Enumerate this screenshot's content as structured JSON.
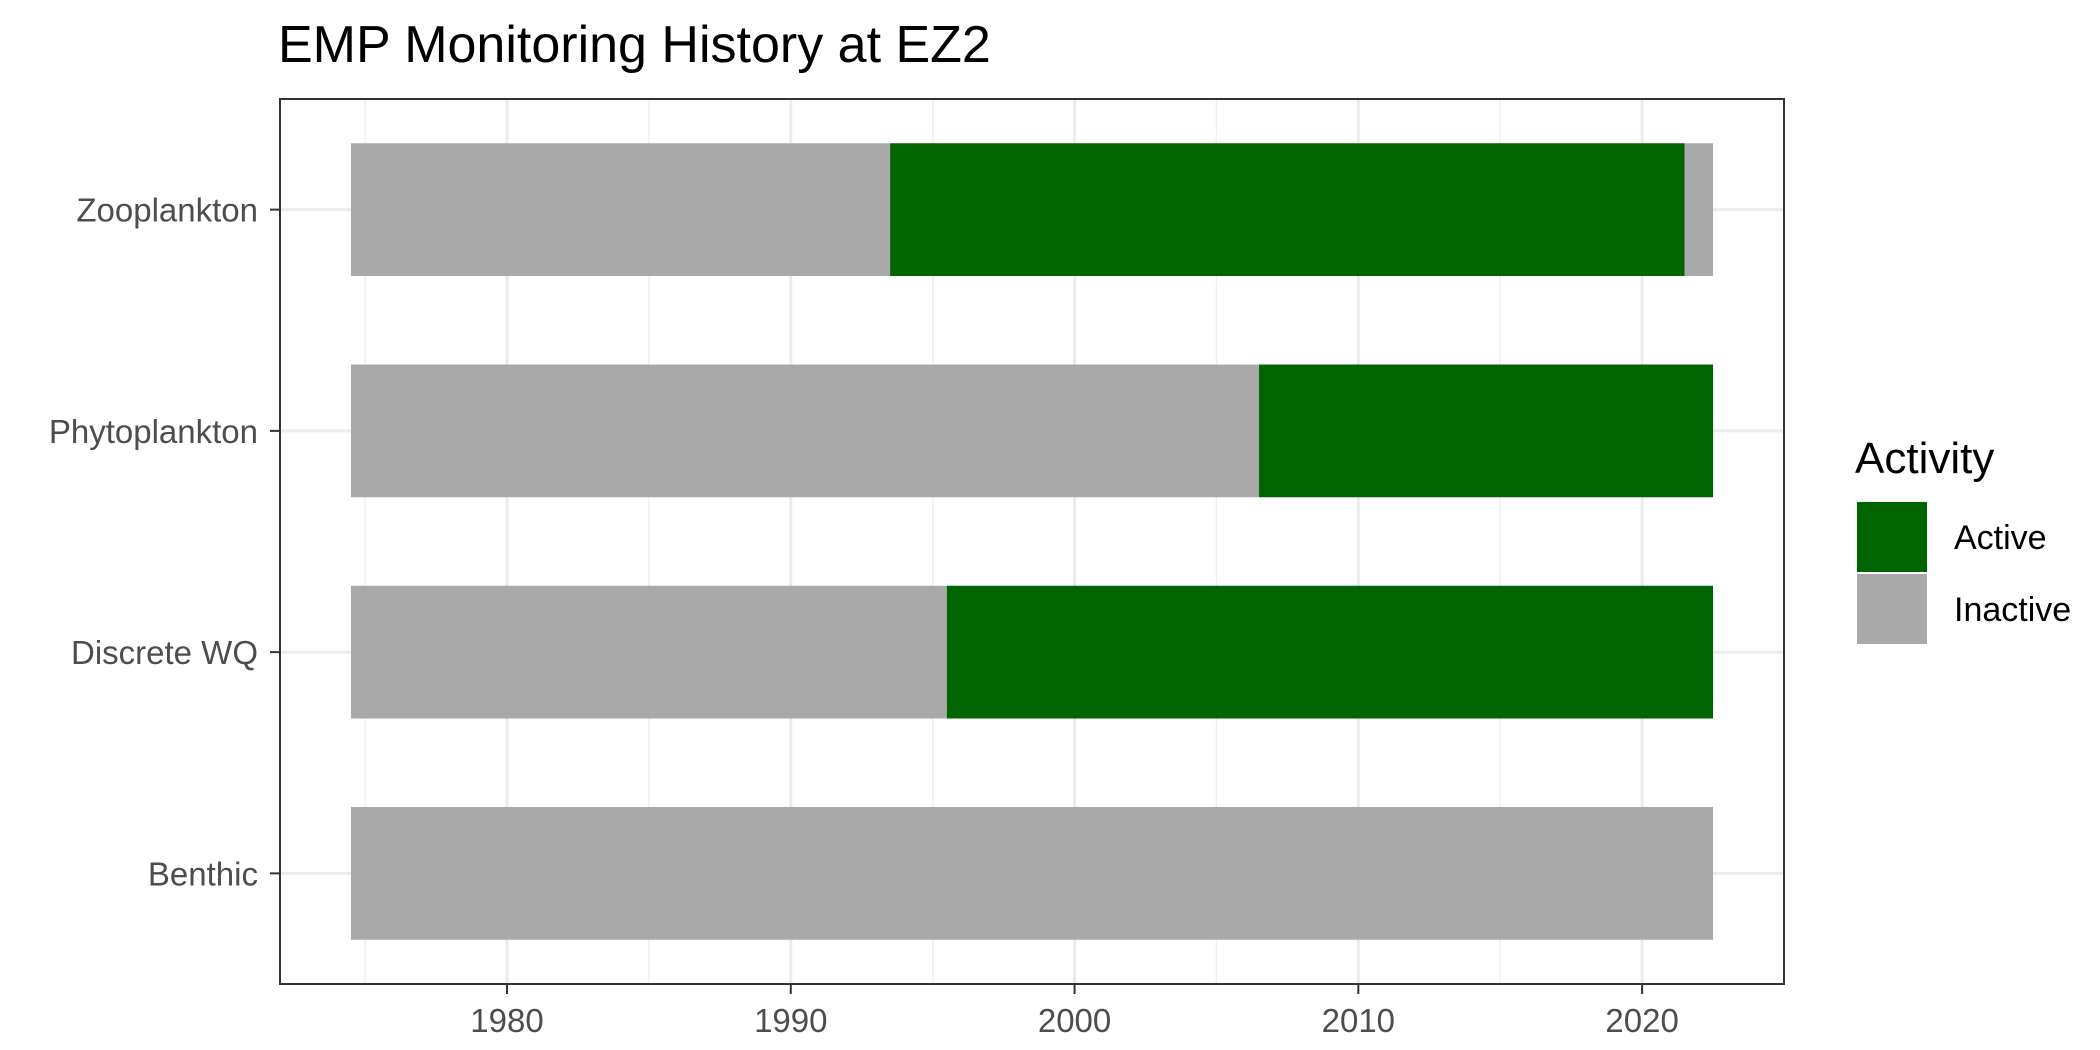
{
  "chart_data": {
    "type": "bar",
    "orientation": "horizontal",
    "stacked": true,
    "title": "EMP Monitoring History at EZ2",
    "xlabel": "",
    "ylabel": "",
    "categories": [
      "Zooplankton",
      "Phytoplankton",
      "Discrete WQ",
      "Benthic"
    ],
    "x_ticks": [
      1980,
      1990,
      2000,
      2010,
      2020
    ],
    "xlim": [
      1972,
      2025
    ],
    "grid": true,
    "legend": {
      "title": "Activity",
      "position": "right",
      "entries": [
        {
          "label": "Active",
          "color": "#006400"
        },
        {
          "label": "Inactive",
          "color": "#A9A9A9"
        }
      ]
    },
    "segments": [
      {
        "category": "Zooplankton",
        "start": 1974.5,
        "end": 1993.5,
        "activity": "Inactive"
      },
      {
        "category": "Zooplankton",
        "start": 1993.5,
        "end": 2021.5,
        "activity": "Active"
      },
      {
        "category": "Zooplankton",
        "start": 2021.5,
        "end": 2022.5,
        "activity": "Inactive"
      },
      {
        "category": "Phytoplankton",
        "start": 1974.5,
        "end": 2006.5,
        "activity": "Inactive"
      },
      {
        "category": "Phytoplankton",
        "start": 2006.5,
        "end": 2022.5,
        "activity": "Active"
      },
      {
        "category": "Discrete WQ",
        "start": 1974.5,
        "end": 1995.5,
        "activity": "Inactive"
      },
      {
        "category": "Discrete WQ",
        "start": 1995.5,
        "end": 2022.5,
        "activity": "Active"
      },
      {
        "category": "Benthic",
        "start": 1974.5,
        "end": 2022.5,
        "activity": "Inactive"
      }
    ]
  }
}
